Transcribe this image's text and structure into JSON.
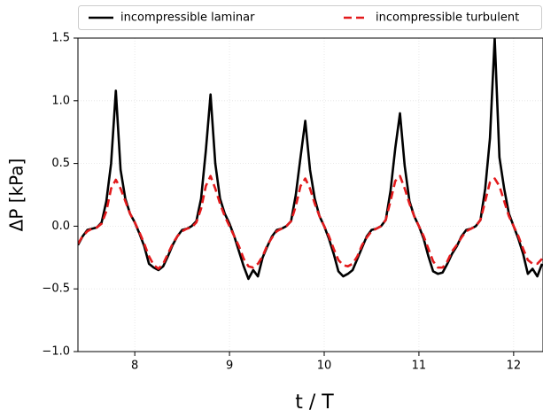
{
  "chart_data": {
    "type": "line",
    "x_label": "t / T",
    "y_label": "ΔP [kPa]",
    "x": [
      7.4,
      7.45,
      7.5,
      7.55,
      7.6,
      7.65,
      7.7,
      7.75,
      7.8,
      7.85,
      7.9,
      7.95,
      8.0,
      8.05,
      8.1,
      8.15,
      8.2,
      8.25,
      8.3,
      8.35,
      8.4,
      8.45,
      8.5,
      8.55,
      8.6,
      8.65,
      8.7,
      8.75,
      8.8,
      8.85,
      8.9,
      8.95,
      9.0,
      9.05,
      9.1,
      9.15,
      9.2,
      9.25,
      9.3,
      9.35,
      9.4,
      9.45,
      9.5,
      9.55,
      9.6,
      9.65,
      9.7,
      9.75,
      9.8,
      9.85,
      9.9,
      9.95,
      10.0,
      10.05,
      10.1,
      10.15,
      10.2,
      10.25,
      10.3,
      10.35,
      10.4,
      10.45,
      10.5,
      10.55,
      10.6,
      10.65,
      10.7,
      10.75,
      10.8,
      10.85,
      10.9,
      10.95,
      11.0,
      11.05,
      11.1,
      11.15,
      11.2,
      11.25,
      11.3,
      11.35,
      11.4,
      11.45,
      11.5,
      11.55,
      11.6,
      11.65,
      11.7,
      11.75,
      11.8,
      11.85,
      11.9,
      11.95,
      12.0,
      12.05,
      12.1,
      12.15,
      12.2,
      12.25,
      12.3
    ],
    "series": [
      {
        "name": "incompressible laminar",
        "color": "#000000",
        "dash": "solid",
        "values": [
          -0.15,
          -0.08,
          -0.03,
          -0.02,
          -0.01,
          0.03,
          0.2,
          0.5,
          1.08,
          0.45,
          0.22,
          0.1,
          0.03,
          -0.06,
          -0.16,
          -0.3,
          -0.33,
          -0.35,
          -0.32,
          -0.24,
          -0.15,
          -0.08,
          -0.03,
          -0.02,
          0.0,
          0.04,
          0.22,
          0.6,
          1.05,
          0.5,
          0.22,
          0.1,
          0.02,
          -0.08,
          -0.2,
          -0.32,
          -0.42,
          -0.35,
          -0.4,
          -0.25,
          -0.16,
          -0.08,
          -0.03,
          -0.02,
          0.0,
          0.04,
          0.25,
          0.55,
          0.84,
          0.45,
          0.22,
          0.08,
          0.0,
          -0.1,
          -0.22,
          -0.36,
          -0.4,
          -0.38,
          -0.35,
          -0.26,
          -0.17,
          -0.08,
          -0.03,
          -0.02,
          0.0,
          0.05,
          0.28,
          0.62,
          0.9,
          0.48,
          0.2,
          0.08,
          0.0,
          -0.1,
          -0.24,
          -0.36,
          -0.38,
          -0.37,
          -0.3,
          -0.22,
          -0.16,
          -0.08,
          -0.03,
          -0.02,
          0.0,
          0.05,
          0.3,
          0.7,
          1.5,
          0.55,
          0.3,
          0.1,
          0.0,
          -0.1,
          -0.22,
          -0.38,
          -0.34,
          -0.4,
          -0.3
        ]
      },
      {
        "name": "incompressible turbulent",
        "color": "#e31a1c",
        "dash": "dashed",
        "values": [
          -0.14,
          -0.08,
          -0.04,
          -0.02,
          -0.01,
          0.02,
          0.12,
          0.3,
          0.37,
          0.3,
          0.2,
          0.1,
          0.03,
          -0.05,
          -0.14,
          -0.24,
          -0.31,
          -0.34,
          -0.3,
          -0.22,
          -0.14,
          -0.08,
          -0.04,
          -0.02,
          -0.01,
          0.03,
          0.14,
          0.32,
          0.4,
          0.3,
          0.18,
          0.08,
          0.0,
          -0.08,
          -0.16,
          -0.26,
          -0.32,
          -0.33,
          -0.3,
          -0.24,
          -0.15,
          -0.09,
          -0.04,
          -0.02,
          0.0,
          0.04,
          0.16,
          0.32,
          0.38,
          0.3,
          0.18,
          0.08,
          0.0,
          -0.08,
          -0.18,
          -0.27,
          -0.31,
          -0.32,
          -0.3,
          -0.24,
          -0.15,
          -0.09,
          -0.04,
          -0.02,
          0.0,
          0.05,
          0.2,
          0.36,
          0.4,
          0.3,
          0.18,
          0.08,
          0.0,
          -0.08,
          -0.18,
          -0.28,
          -0.33,
          -0.33,
          -0.28,
          -0.2,
          -0.15,
          -0.09,
          -0.04,
          -0.02,
          0.0,
          0.05,
          0.2,
          0.35,
          0.38,
          0.32,
          0.2,
          0.08,
          0.0,
          -0.08,
          -0.18,
          -0.27,
          -0.3,
          -0.3,
          -0.26
        ]
      }
    ],
    "xlim": [
      7.4,
      12.31
    ],
    "ylim": [
      -1.0,
      1.5
    ],
    "xticks": [
      8,
      9,
      10,
      11,
      12
    ],
    "yticks": [
      {
        "value": -1.0,
        "label": "−1.0"
      },
      {
        "value": -0.5,
        "label": "−0.5"
      },
      {
        "value": 0.0,
        "label": "0.0"
      },
      {
        "value": 0.5,
        "label": "0.5"
      },
      {
        "value": 1.0,
        "label": "1.0"
      },
      1.5
    ],
    "grid": true,
    "legend": "top"
  }
}
